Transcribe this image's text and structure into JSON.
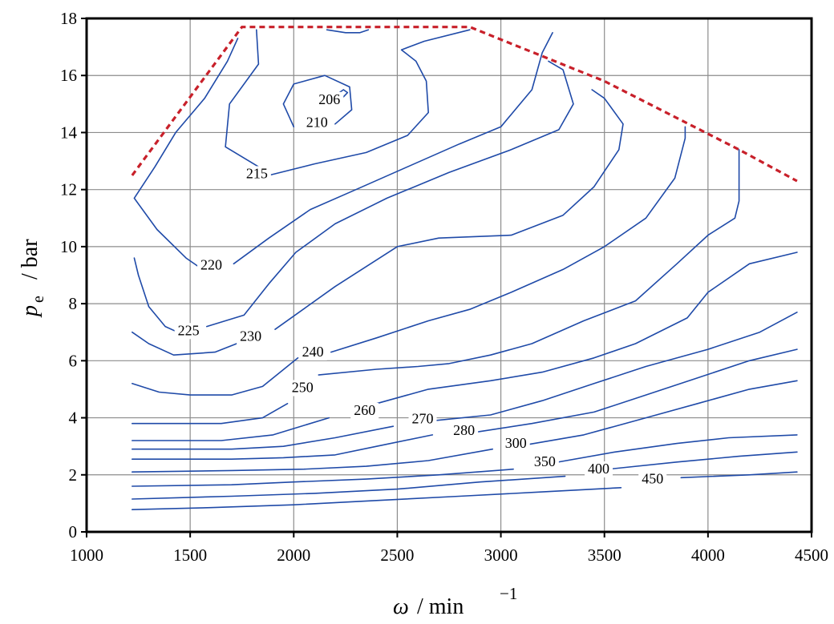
{
  "chart_data": {
    "type": "contour",
    "xlabel": {
      "symbol": "ω",
      "unit": "/ min",
      "exponent": "−1"
    },
    "ylabel": {
      "symbol": "p",
      "subscript": "e",
      "unit": "/ bar"
    },
    "xlim": [
      1000,
      4500
    ],
    "ylim": [
      0,
      18
    ],
    "xticks": [
      1000,
      1500,
      2000,
      2500,
      3000,
      3500,
      4000,
      4500
    ],
    "yticks": [
      0,
      2,
      4,
      6,
      8,
      10,
      12,
      14,
      16,
      18
    ],
    "grid": true,
    "full_load_limit": [
      [
        1220,
        12.5
      ],
      [
        1750,
        17.7
      ],
      [
        2850,
        17.7
      ],
      [
        3500,
        15.8
      ],
      [
        4150,
        13.4
      ],
      [
        4430,
        12.3
      ]
    ],
    "contours": [
      {
        "label": "206",
        "label_at": [
          2120,
          15.0
        ],
        "points": [
          [
            2220,
            15.4
          ],
          [
            2240,
            15.5
          ],
          [
            2260,
            15.4
          ],
          [
            2240,
            15.25
          ],
          [
            2220,
            15.4
          ]
        ]
      },
      {
        "label": "210",
        "label_at": [
          2060,
          14.2
        ],
        "points": [
          [
            2000,
            14.2
          ],
          [
            1950,
            15.0
          ],
          [
            2000,
            15.7
          ],
          [
            2150,
            16.0
          ],
          [
            2270,
            15.6
          ],
          [
            2280,
            14.8
          ],
          [
            2200,
            14.3
          ]
        ]
      },
      {
        "label": "215",
        "label_at": [
          1770,
          12.4
        ],
        "points": [
          [
            1830,
            12.8
          ],
          [
            1670,
            13.5
          ],
          [
            1690,
            15.0
          ],
          [
            1830,
            16.4
          ],
          [
            1820,
            17.6
          ]
        ]
      },
      {
        "label": "215",
        "label_at": [
          1770,
          12.4
        ],
        "points": [
          [
            1880,
            12.5
          ],
          [
            2100,
            12.9
          ],
          [
            2350,
            13.3
          ],
          [
            2550,
            13.9
          ],
          [
            2650,
            14.7
          ],
          [
            2640,
            15.8
          ],
          [
            2590,
            16.5
          ],
          [
            2520,
            16.9
          ],
          [
            2630,
            17.2
          ],
          [
            2850,
            17.6
          ]
        ]
      },
      {
        "label": "215",
        "label_at": [
          1770,
          12.4
        ],
        "points": [
          [
            2160,
            17.6
          ],
          [
            2250,
            17.5
          ],
          [
            2320,
            17.5
          ],
          [
            2360,
            17.6
          ]
        ]
      },
      {
        "label": "220",
        "label_at": [
          1550,
          9.2
        ],
        "points": [
          [
            1560,
            9.2
          ],
          [
            1480,
            9.6
          ],
          [
            1340,
            10.6
          ],
          [
            1230,
            11.7
          ],
          [
            1330,
            12.8
          ],
          [
            1430,
            14.0
          ],
          [
            1570,
            15.2
          ],
          [
            1680,
            16.5
          ],
          [
            1730,
            17.3
          ]
        ]
      },
      {
        "label": "220",
        "label_at": [
          1550,
          9.2
        ],
        "points": [
          [
            1710,
            9.4
          ],
          [
            1880,
            10.3
          ],
          [
            2080,
            11.3
          ],
          [
            2300,
            12.0
          ],
          [
            2550,
            12.8
          ],
          [
            2800,
            13.6
          ],
          [
            3000,
            14.2
          ],
          [
            3150,
            15.5
          ],
          [
            3200,
            16.8
          ],
          [
            3250,
            17.5
          ]
        ]
      },
      {
        "label": "225",
        "label_at": [
          1440,
          6.9
        ],
        "points": [
          [
            1440,
            7.0
          ],
          [
            1380,
            7.2
          ],
          [
            1300,
            7.9
          ],
          [
            1250,
            9.0
          ],
          [
            1230,
            9.6
          ]
        ]
      },
      {
        "label": "225",
        "label_at": [
          1440,
          6.9
        ],
        "points": [
          [
            1580,
            7.2
          ],
          [
            1760,
            7.6
          ],
          [
            1880,
            8.7
          ],
          [
            2010,
            9.8
          ],
          [
            2200,
            10.8
          ],
          [
            2450,
            11.7
          ],
          [
            2750,
            12.6
          ],
          [
            3050,
            13.4
          ],
          [
            3280,
            14.1
          ],
          [
            3350,
            15.0
          ],
          [
            3300,
            16.2
          ],
          [
            3230,
            16.5
          ]
        ]
      },
      {
        "label": "230",
        "label_at": [
          1740,
          6.7
        ],
        "points": [
          [
            1830,
            6.9
          ],
          [
            1620,
            6.3
          ],
          [
            1420,
            6.2
          ],
          [
            1300,
            6.6
          ],
          [
            1220,
            7.0
          ]
        ]
      },
      {
        "label": "230",
        "label_at": [
          1740,
          6.7
        ],
        "points": [
          [
            1910,
            7.1
          ],
          [
            2200,
            8.6
          ],
          [
            2500,
            10.0
          ],
          [
            2700,
            10.3
          ],
          [
            3050,
            10.4
          ],
          [
            3300,
            11.1
          ],
          [
            3450,
            12.1
          ],
          [
            3570,
            13.4
          ],
          [
            3590,
            14.3
          ],
          [
            3500,
            15.2
          ],
          [
            3440,
            15.5
          ]
        ]
      },
      {
        "label": "240",
        "label_at": [
          2040,
          6.15
        ],
        "points": [
          [
            2020,
            6.1
          ],
          [
            1850,
            5.1
          ],
          [
            1700,
            4.8
          ],
          [
            1500,
            4.8
          ],
          [
            1350,
            4.9
          ],
          [
            1220,
            5.2
          ]
        ]
      },
      {
        "label": "240",
        "label_at": [
          2040,
          6.15
        ],
        "points": [
          [
            2180,
            6.3
          ],
          [
            2400,
            6.8
          ],
          [
            2650,
            7.4
          ],
          [
            2850,
            7.8
          ],
          [
            3050,
            8.4
          ],
          [
            3300,
            9.2
          ],
          [
            3500,
            10.0
          ],
          [
            3700,
            11.0
          ],
          [
            3840,
            12.4
          ],
          [
            3890,
            13.8
          ],
          [
            3890,
            14.2
          ]
        ]
      },
      {
        "label": "250",
        "label_at": [
          1990,
          4.9
        ],
        "points": [
          [
            1970,
            4.5
          ],
          [
            1850,
            4.0
          ],
          [
            1650,
            3.8
          ],
          [
            1400,
            3.8
          ],
          [
            1220,
            3.8
          ]
        ]
      },
      {
        "label": "250",
        "label_at": [
          1990,
          4.9
        ],
        "points": [
          [
            2120,
            5.5
          ],
          [
            2400,
            5.7
          ],
          [
            2600,
            5.8
          ],
          [
            2750,
            5.9
          ],
          [
            2950,
            6.2
          ],
          [
            3150,
            6.6
          ],
          [
            3400,
            7.4
          ],
          [
            3650,
            8.1
          ],
          [
            3850,
            9.4
          ],
          [
            4000,
            10.4
          ],
          [
            4130,
            11.0
          ],
          [
            4150,
            11.6
          ],
          [
            4150,
            13.4
          ]
        ]
      },
      {
        "label": "260",
        "label_at": [
          2290,
          4.1
        ],
        "points": [
          [
            2170,
            4.0
          ],
          [
            1900,
            3.4
          ],
          [
            1650,
            3.2
          ],
          [
            1400,
            3.2
          ],
          [
            1220,
            3.2
          ]
        ]
      },
      {
        "label": "260",
        "label_at": [
          2380,
          4.5
        ],
        "points": [
          [
            2400,
            4.5
          ],
          [
            2650,
            5.0
          ],
          [
            2950,
            5.3
          ],
          [
            3200,
            5.6
          ],
          [
            3450,
            6.1
          ],
          [
            3650,
            6.6
          ],
          [
            3900,
            7.5
          ],
          [
            4000,
            8.4
          ],
          [
            4200,
            9.4
          ],
          [
            4430,
            9.8
          ]
        ]
      },
      {
        "label": "270",
        "label_at": [
          2570,
          3.8
        ],
        "points": [
          [
            2480,
            3.7
          ],
          [
            2200,
            3.3
          ],
          [
            1950,
            3.0
          ],
          [
            1700,
            2.9
          ],
          [
            1450,
            2.9
          ],
          [
            1220,
            2.9
          ]
        ]
      },
      {
        "label": "270",
        "label_at": [
          2660,
          3.9
        ],
        "points": [
          [
            2680,
            3.9
          ],
          [
            2950,
            4.1
          ],
          [
            3200,
            4.6
          ],
          [
            3450,
            5.2
          ],
          [
            3700,
            5.8
          ],
          [
            4000,
            6.4
          ],
          [
            4250,
            7.0
          ],
          [
            4430,
            7.7
          ]
        ]
      },
      {
        "label": "280",
        "label_at": [
          2770,
          3.4
        ],
        "points": [
          [
            2670,
            3.4
          ],
          [
            2400,
            3.0
          ],
          [
            2200,
            2.7
          ],
          [
            1950,
            2.6
          ],
          [
            1700,
            2.55
          ],
          [
            1220,
            2.55
          ]
        ]
      },
      {
        "label": "280",
        "label_at": [
          2880,
          3.5
        ],
        "points": [
          [
            2880,
            3.5
          ],
          [
            3150,
            3.8
          ],
          [
            3450,
            4.2
          ],
          [
            3700,
            4.8
          ],
          [
            3950,
            5.4
          ],
          [
            4200,
            6.0
          ],
          [
            4430,
            6.4
          ]
        ]
      },
      {
        "label": "300",
        "label_at": [
          3020,
          2.95
        ],
        "points": [
          [
            2960,
            2.9
          ],
          [
            2650,
            2.5
          ],
          [
            2350,
            2.3
          ],
          [
            2050,
            2.2
          ],
          [
            1700,
            2.15
          ],
          [
            1220,
            2.1
          ]
        ]
      },
      {
        "label": "300",
        "label_at": [
          3060,
          3.0
        ],
        "points": [
          [
            3080,
            3.0
          ],
          [
            3400,
            3.4
          ],
          [
            3700,
            4.0
          ],
          [
            3950,
            4.5
          ],
          [
            4200,
            5.0
          ],
          [
            4430,
            5.3
          ]
        ]
      },
      {
        "label": "350",
        "label_at": [
          3160,
          2.3
        ],
        "points": [
          [
            3060,
            2.2
          ],
          [
            2700,
            2.0
          ],
          [
            2350,
            1.85
          ],
          [
            2000,
            1.75
          ],
          [
            1700,
            1.65
          ],
          [
            1220,
            1.6
          ]
        ]
      },
      {
        "label": "350",
        "label_at": [
          3240,
          2.35
        ],
        "points": [
          [
            3240,
            2.4
          ],
          [
            3550,
            2.8
          ],
          [
            3850,
            3.1
          ],
          [
            4100,
            3.3
          ],
          [
            4430,
            3.4
          ]
        ]
      },
      {
        "label": "400",
        "label_at": [
          3420,
          2.05
        ],
        "points": [
          [
            3310,
            1.95
          ],
          [
            2900,
            1.75
          ],
          [
            2500,
            1.5
          ],
          [
            2100,
            1.35
          ],
          [
            1700,
            1.25
          ],
          [
            1220,
            1.15
          ]
        ]
      },
      {
        "label": "400",
        "label_at": [
          3510,
          2.1
        ],
        "points": [
          [
            3520,
            2.2
          ],
          [
            3850,
            2.45
          ],
          [
            4150,
            2.65
          ],
          [
            4430,
            2.8
          ]
        ]
      },
      {
        "label": "450",
        "label_at": [
          3680,
          1.7
        ],
        "points": [
          [
            3580,
            1.55
          ],
          [
            3200,
            1.4
          ],
          [
            2800,
            1.25
          ],
          [
            2400,
            1.1
          ],
          [
            2000,
            0.95
          ],
          [
            1600,
            0.85
          ],
          [
            1220,
            0.78
          ]
        ]
      },
      {
        "label": "450",
        "label_at": [
          3780,
          1.7
        ],
        "points": [
          [
            3870,
            1.9
          ],
          [
            4200,
            2.0
          ],
          [
            4430,
            2.1
          ]
        ]
      }
    ]
  }
}
